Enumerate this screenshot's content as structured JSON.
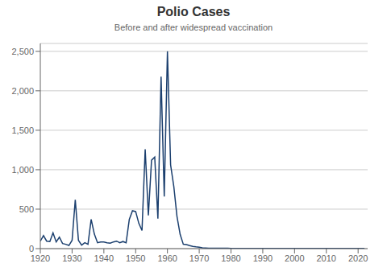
{
  "chart_data": {
    "type": "line",
    "title": "Polio Cases",
    "subtitle": "Before and after widespread vaccination",
    "color": "#1b3f6e",
    "grid": true,
    "xlim": [
      1920,
      2023
    ],
    "xticks": [
      1920,
      1930,
      1940,
      1950,
      1960,
      1970,
      1980,
      1990,
      2000,
      2010,
      2020
    ],
    "ylim": [
      0,
      2600
    ],
    "yticks": [
      0,
      500,
      {
        "value": 1000,
        "label": "1,000"
      },
      {
        "value": 1500,
        "label": "1,500"
      },
      {
        "value": 2000,
        "label": "2,000"
      },
      {
        "value": 2500,
        "label": "2,500"
      }
    ],
    "x": [
      1920,
      1921,
      1922,
      1923,
      1924,
      1925,
      1926,
      1927,
      1928,
      1929,
      1930,
      1931,
      1932,
      1933,
      1934,
      1935,
      1936,
      1937,
      1938,
      1939,
      1940,
      1941,
      1942,
      1943,
      1944,
      1945,
      1946,
      1947,
      1948,
      1949,
      1950,
      1951,
      1952,
      1953,
      1954,
      1955,
      1956,
      1957,
      1958,
      1959,
      1960,
      1961,
      1962,
      1963,
      1964,
      1965,
      1966,
      1967,
      1968,
      1969,
      1970,
      1971,
      1972,
      1973,
      1974,
      1975,
      1976,
      1977,
      1978,
      1979,
      1980,
      1981,
      1982,
      1983,
      1984,
      1985,
      1986,
      1987,
      1988,
      1989,
      1990,
      1991,
      1992,
      1993,
      1994,
      1995,
      1996,
      1997,
      1998,
      1999,
      2000,
      2001,
      2002,
      2003,
      2004,
      2005,
      2006,
      2007,
      2008,
      2009,
      2010,
      2011,
      2012,
      2013,
      2014,
      2015,
      2016,
      2017,
      2018,
      2019,
      2020,
      2021,
      2022
    ],
    "values": [
      95,
      165,
      95,
      90,
      200,
      85,
      145,
      65,
      55,
      40,
      105,
      620,
      105,
      45,
      75,
      55,
      370,
      185,
      75,
      85,
      85,
      75,
      70,
      85,
      95,
      75,
      90,
      75,
      370,
      480,
      470,
      320,
      230,
      1260,
      420,
      1120,
      1160,
      380,
      2180,
      660,
      2500,
      1060,
      790,
      410,
      180,
      55,
      50,
      38,
      28,
      22,
      18,
      10,
      8,
      6,
      6,
      5,
      5,
      4,
      4,
      4,
      3,
      3,
      3,
      2,
      2,
      2,
      2,
      2,
      2,
      2,
      2,
      2,
      2,
      2,
      2,
      2,
      2,
      2,
      2,
      2,
      2,
      2,
      2,
      2,
      2,
      2,
      2,
      2,
      2,
      2,
      2,
      2,
      2,
      2,
      2,
      2,
      2,
      2,
      2,
      2,
      2,
      2,
      2
    ]
  }
}
